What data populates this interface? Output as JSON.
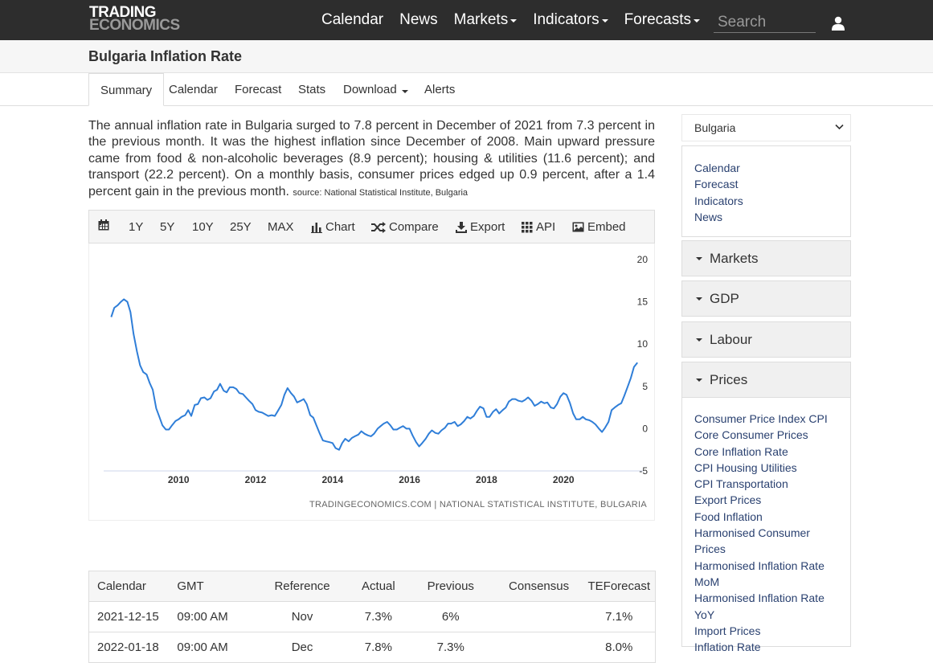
{
  "header": {
    "logo_line1": "TRADING",
    "logo_line2": "ECONOMICS",
    "nav": [
      {
        "label": "Calendar",
        "dropdown": false
      },
      {
        "label": "News",
        "dropdown": false
      },
      {
        "label": "Markets",
        "dropdown": true
      },
      {
        "label": "Indicators",
        "dropdown": true
      },
      {
        "label": "Forecasts",
        "dropdown": true
      }
    ],
    "search_placeholder": "Search",
    "user_icon": "user-icon"
  },
  "page_title": "Bulgaria Inflation Rate",
  "tabs": [
    {
      "label": "Summary",
      "active": true
    },
    {
      "label": "Calendar"
    },
    {
      "label": "Forecast"
    },
    {
      "label": "Stats"
    },
    {
      "label": "Download",
      "dropdown": true
    },
    {
      "label": "Alerts"
    }
  ],
  "summary": {
    "text": "The annual inflation rate in Bulgaria surged to 7.8 percent in December of 2021 from 7.3 percent in the previous month. It was the highest inflation since December of 2008. Main upward pressure came from food & non-alcoholic beverages (8.9 percent); housing & utilities (11.6 percent); and transport (22.2 percent). On a monthly basis, consumer prices edged up 0.9 percent, after a 1.4 percent gain in the previous month.",
    "source": "source: National Statistical Institute, Bulgaria"
  },
  "chart_toolbar": {
    "ranges": [
      "1Y",
      "5Y",
      "10Y",
      "25Y",
      "MAX"
    ],
    "chart": "Chart",
    "compare": "Compare",
    "export": "Export",
    "api": "API",
    "embed": "Embed"
  },
  "chart_data": {
    "type": "line",
    "title": "",
    "xlabel": "",
    "ylabel": "",
    "x_ticks": [
      "2010",
      "2012",
      "2014",
      "2016",
      "2018",
      "2020"
    ],
    "y_ticks": [
      20,
      15,
      10,
      5,
      0,
      -5
    ],
    "ylim": [
      -5,
      20
    ],
    "xlim": [
      2008.2,
      2022.0
    ],
    "grid": false,
    "color": "#2f7ed8",
    "series": [
      {
        "x": [
          2008.25,
          2008.33,
          2008.42,
          2008.5,
          2008.58,
          2008.67,
          2008.75,
          2008.83,
          2008.92,
          2009.0,
          2009.08,
          2009.17,
          2009.25,
          2009.33,
          2009.42,
          2009.5,
          2009.58,
          2009.67,
          2009.75,
          2009.83,
          2009.92,
          2010.0,
          2010.08,
          2010.17,
          2010.25,
          2010.33,
          2010.42,
          2010.5,
          2010.58,
          2010.67,
          2010.75,
          2010.83,
          2010.92,
          2011.0,
          2011.08,
          2011.17,
          2011.25,
          2011.33,
          2011.42,
          2011.5,
          2011.58,
          2011.67,
          2011.75,
          2011.83,
          2011.92,
          2012.0,
          2012.08,
          2012.17,
          2012.25,
          2012.33,
          2012.42,
          2012.5,
          2012.58,
          2012.67,
          2012.75,
          2012.83,
          2012.92,
          2013.0,
          2013.08,
          2013.17,
          2013.25,
          2013.33,
          2013.42,
          2013.5,
          2013.58,
          2013.67,
          2013.75,
          2013.83,
          2013.92,
          2014.0,
          2014.08,
          2014.17,
          2014.25,
          2014.33,
          2014.42,
          2014.5,
          2014.58,
          2014.67,
          2014.75,
          2014.83,
          2014.92,
          2015.0,
          2015.08,
          2015.17,
          2015.25,
          2015.33,
          2015.42,
          2015.5,
          2015.58,
          2015.67,
          2015.75,
          2015.83,
          2015.92,
          2016.0,
          2016.08,
          2016.17,
          2016.25,
          2016.33,
          2016.42,
          2016.5,
          2016.58,
          2016.67,
          2016.75,
          2016.83,
          2016.92,
          2017.0,
          2017.08,
          2017.17,
          2017.25,
          2017.33,
          2017.42,
          2017.5,
          2017.58,
          2017.67,
          2017.75,
          2017.83,
          2017.92,
          2018.0,
          2018.08,
          2018.17,
          2018.25,
          2018.33,
          2018.42,
          2018.5,
          2018.58,
          2018.67,
          2018.75,
          2018.83,
          2018.92,
          2019.0,
          2019.08,
          2019.17,
          2019.25,
          2019.33,
          2019.42,
          2019.5,
          2019.58,
          2019.67,
          2019.75,
          2019.83,
          2019.92,
          2020.0,
          2020.08,
          2020.17,
          2020.25,
          2020.33,
          2020.42,
          2020.5,
          2020.58,
          2020.67,
          2020.75,
          2020.83,
          2020.92,
          2021.0,
          2021.08,
          2021.17,
          2021.25,
          2021.33,
          2021.42,
          2021.5,
          2021.58,
          2021.67,
          2021.75,
          2021.83,
          2021.92
        ],
        "y": [
          13.2,
          14.3,
          14.6,
          15.0,
          15.3,
          15.0,
          13.8,
          11.2,
          9.1,
          7.5,
          6.7,
          6.4,
          5.4,
          4.6,
          2.4,
          1.4,
          0.4,
          -0.1,
          -0.1,
          0.4,
          0.9,
          1.1,
          1.4,
          1.6,
          2.2,
          1.5,
          2.8,
          2.9,
          3.6,
          3.7,
          3.4,
          3.6,
          4.4,
          4.6,
          5.3,
          4.5,
          4.3,
          4.9,
          4.9,
          4.7,
          4.2,
          4.1,
          3.7,
          3.3,
          2.9,
          2.2,
          2.0,
          1.9,
          1.7,
          1.5,
          1.6,
          1.5,
          2.1,
          2.8,
          4.0,
          4.8,
          4.2,
          3.8,
          3.1,
          3.3,
          3.5,
          2.9,
          1.6,
          1.3,
          0.4,
          -0.6,
          -1.4,
          -1.5,
          -1.6,
          -1.7,
          -2.3,
          -2.5,
          -1.7,
          -1.2,
          -1.5,
          -1.1,
          -0.9,
          -0.7,
          -0.3,
          -0.6,
          -0.8,
          -0.9,
          -0.6,
          0.0,
          0.3,
          0.6,
          0.8,
          0.4,
          -0.1,
          -0.1,
          0.1,
          0.3,
          0.0,
          0.0,
          -0.8,
          -1.6,
          -2.1,
          -1.7,
          -1.2,
          -0.6,
          -0.2,
          -0.5,
          -0.6,
          -0.2,
          0.1,
          0.6,
          0.6,
          0.8,
          0.3,
          0.5,
          0.9,
          1.4,
          1.2,
          1.5,
          2.1,
          2.6,
          2.4,
          1.4,
          1.4,
          2.0,
          2.3,
          1.8,
          2.2,
          2.5,
          3.2,
          3.5,
          3.5,
          3.3,
          3.2,
          3.4,
          3.7,
          3.3,
          2.7,
          2.9,
          3.2,
          3.0,
          3.1,
          2.5,
          2.4,
          2.9,
          3.8,
          4.2,
          4.0,
          3.0,
          1.8,
          1.1,
          1.1,
          1.4,
          1.1,
          1.0,
          0.8,
          0.5,
          0.0,
          -0.4,
          0.1,
          0.8,
          2.2,
          2.5,
          2.8,
          3.0,
          3.9,
          5.0,
          6.0,
          7.3,
          7.8
        ]
      }
    ],
    "credit": "TRADINGECONOMICS.COM | NATIONAL STATISTICAL INSTITUTE, BULGARIA"
  },
  "calendar_table": {
    "headers": [
      "Calendar",
      "GMT",
      "Reference",
      "Actual",
      "Previous",
      "Consensus",
      "TEForecast"
    ],
    "rows": [
      [
        "2021-12-15",
        "09:00 AM",
        "Nov",
        "7.3%",
        "6%",
        "",
        "7.1%"
      ],
      [
        "2022-01-18",
        "09:00 AM",
        "Dec",
        "7.8%",
        "7.3%",
        "",
        "8.0%"
      ]
    ]
  },
  "sidebar": {
    "country": "Bulgaria",
    "links": [
      "Calendar",
      "Forecast",
      "Indicators",
      "News"
    ],
    "panels": [
      "Markets",
      "GDP",
      "Labour",
      "Prices"
    ],
    "prices_items": [
      "Consumer Price Index CPI",
      "Core Consumer Prices",
      "Core Inflation Rate",
      "CPI Housing Utilities",
      "CPI Transportation",
      "Export Prices",
      "Food Inflation",
      "Harmonised Consumer Prices",
      "Harmonised Inflation Rate MoM",
      "Harmonised Inflation Rate YoY",
      "Import Prices",
      "Inflation Rate"
    ]
  }
}
